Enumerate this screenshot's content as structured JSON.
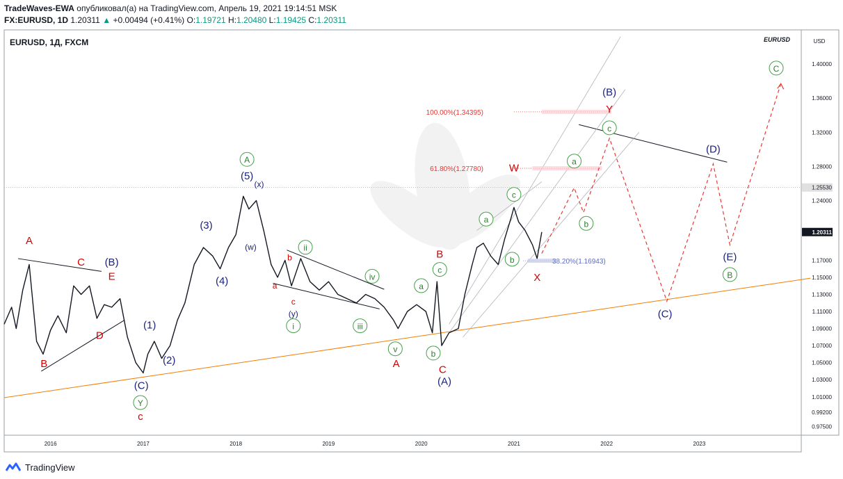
{
  "header": {
    "publisher": "TradeWaves-EWA",
    "published_text": "опубликовал(а) на TradingView.com, Апрель 19, 2021 19:14:51 MSK",
    "symbol": "FX:EURUSD, 1D",
    "last": "1.20311",
    "change": "+0.00494 (+0.41%)",
    "o_label": "O:",
    "o_val": "1.19721",
    "h_label": "H:",
    "h_val": "1.20480",
    "l_label": "L:",
    "l_val": "1.19425",
    "c_label": "C:",
    "c_val": "1.20311"
  },
  "footer": {
    "brand": "TradingView"
  },
  "chart_data": {
    "type": "line",
    "title": "EURUSD, 1Д, FXCM",
    "watermark": "EURUSD",
    "y_axis_unit": "USD",
    "ylim": [
      0.965,
      1.44
    ],
    "xlim": [
      2015.5,
      2024.1
    ],
    "y_ticks": [
      "1.40000",
      "1.36000",
      "1.32000",
      "1.28000",
      "1.24000",
      "1.20311",
      "1.17000",
      "1.15000",
      "1.13000",
      "1.11000",
      "1.09000",
      "1.07000",
      "1.05000",
      "1.03000",
      "1.01000",
      "0.99200",
      "0.97500"
    ],
    "y_tick_values": [
      1.4,
      1.36,
      1.32,
      1.28,
      1.24,
      1.20311,
      1.17,
      1.15,
      1.13,
      1.11,
      1.09,
      1.07,
      1.05,
      1.03,
      1.01,
      0.992,
      0.975
    ],
    "y_marker": {
      "label": "1.25530",
      "value": 1.2553
    },
    "last_price_badge": {
      "label": "1.20311",
      "value": 1.20311
    },
    "x_ticks": [
      "2016",
      "2017",
      "2018",
      "2019",
      "2020",
      "2021",
      "2022",
      "2023"
    ],
    "x_tick_values": [
      2016,
      2017,
      2018,
      2019,
      2020,
      2021,
      2022,
      2023
    ],
    "series": [
      {
        "type": "price",
        "points": [
          [
            2015.5,
            1.095
          ],
          [
            2015.58,
            1.115
          ],
          [
            2015.63,
            1.09
          ],
          [
            2015.7,
            1.135
          ],
          [
            2015.77,
            1.165
          ],
          [
            2015.85,
            1.075
          ],
          [
            2015.92,
            1.06
          ],
          [
            2016.0,
            1.088
          ],
          [
            2016.08,
            1.105
          ],
          [
            2016.17,
            1.085
          ],
          [
            2016.25,
            1.14
          ],
          [
            2016.33,
            1.13
          ],
          [
            2016.42,
            1.14
          ],
          [
            2016.5,
            1.102
          ],
          [
            2016.58,
            1.118
          ],
          [
            2016.66,
            1.115
          ],
          [
            2016.75,
            1.125
          ],
          [
            2016.83,
            1.08
          ],
          [
            2016.92,
            1.05
          ],
          [
            2017.0,
            1.038
          ],
          [
            2017.05,
            1.06
          ],
          [
            2017.12,
            1.075
          ],
          [
            2017.2,
            1.055
          ],
          [
            2017.29,
            1.07
          ],
          [
            2017.37,
            1.1
          ],
          [
            2017.45,
            1.12
          ],
          [
            2017.55,
            1.165
          ],
          [
            2017.65,
            1.185
          ],
          [
            2017.75,
            1.175
          ],
          [
            2017.83,
            1.16
          ],
          [
            2017.92,
            1.185
          ],
          [
            2018.0,
            1.2
          ],
          [
            2018.08,
            1.245
          ],
          [
            2018.14,
            1.23
          ],
          [
            2018.22,
            1.24
          ],
          [
            2018.3,
            1.205
          ],
          [
            2018.38,
            1.165
          ],
          [
            2018.45,
            1.15
          ],
          [
            2018.53,
            1.17
          ],
          [
            2018.6,
            1.14
          ],
          [
            2018.7,
            1.172
          ],
          [
            2018.8,
            1.145
          ],
          [
            2018.9,
            1.135
          ],
          [
            2019.0,
            1.145
          ],
          [
            2019.1,
            1.13
          ],
          [
            2019.2,
            1.125
          ],
          [
            2019.3,
            1.12
          ],
          [
            2019.4,
            1.13
          ],
          [
            2019.5,
            1.125
          ],
          [
            2019.6,
            1.115
          ],
          [
            2019.7,
            1.1
          ],
          [
            2019.75,
            1.09
          ],
          [
            2019.85,
            1.11
          ],
          [
            2019.95,
            1.118
          ],
          [
            2020.05,
            1.11
          ],
          [
            2020.12,
            1.085
          ],
          [
            2020.17,
            1.145
          ],
          [
            2020.22,
            1.07
          ],
          [
            2020.3,
            1.085
          ],
          [
            2020.4,
            1.09
          ],
          [
            2020.47,
            1.13
          ],
          [
            2020.55,
            1.165
          ],
          [
            2020.6,
            1.185
          ],
          [
            2020.67,
            1.19
          ],
          [
            2020.75,
            1.175
          ],
          [
            2020.83,
            1.165
          ],
          [
            2020.9,
            1.195
          ],
          [
            2020.97,
            1.22
          ],
          [
            2021.0,
            1.232
          ],
          [
            2021.05,
            1.215
          ],
          [
            2021.12,
            1.205
          ],
          [
            2021.2,
            1.188
          ],
          [
            2021.25,
            1.172
          ],
          [
            2021.3,
            1.2031
          ]
        ]
      }
    ],
    "waves": [
      {
        "text": "A",
        "x": 2015.77,
        "y": 1.189,
        "kind": "red"
      },
      {
        "text": "B",
        "x": 2015.93,
        "y": 1.045,
        "kind": "red"
      },
      {
        "text": "C",
        "x": 2016.33,
        "y": 1.164,
        "kind": "red"
      },
      {
        "text": "(B)",
        "x": 2016.66,
        "y": 1.164,
        "kind": "blue"
      },
      {
        "text": "E",
        "x": 2016.66,
        "y": 1.147,
        "kind": "red"
      },
      {
        "text": "D",
        "x": 2016.53,
        "y": 1.078,
        "kind": "red"
      },
      {
        "text": "(C)",
        "x": 2016.98,
        "y": 1.019,
        "kind": "blue"
      },
      {
        "text": "Y",
        "x": 2016.97,
        "y": 1.0,
        "kind": "green-circle"
      },
      {
        "text": "c",
        "x": 2016.97,
        "y": 0.983,
        "kind": "red"
      },
      {
        "text": "(1)",
        "x": 2017.07,
        "y": 1.09,
        "kind": "blue"
      },
      {
        "text": "(2)",
        "x": 2017.28,
        "y": 1.049,
        "kind": "blue"
      },
      {
        "text": "(3)",
        "x": 2017.68,
        "y": 1.207,
        "kind": "blue"
      },
      {
        "text": "(4)",
        "x": 2017.85,
        "y": 1.142,
        "kind": "blue"
      },
      {
        "text": "A",
        "x": 2018.12,
        "y": 1.285,
        "kind": "green-circle"
      },
      {
        "text": "(5)",
        "x": 2018.12,
        "y": 1.265,
        "kind": "blue"
      },
      {
        "text": "(x)",
        "x": 2018.25,
        "y": 1.256,
        "kind": "blue-small"
      },
      {
        "text": "(w)",
        "x": 2018.16,
        "y": 1.182,
        "kind": "blue-small"
      },
      {
        "text": "b",
        "x": 2018.58,
        "y": 1.17,
        "kind": "red-small"
      },
      {
        "text": "ii",
        "x": 2018.75,
        "y": 1.182,
        "kind": "green-circle"
      },
      {
        "text": "a",
        "x": 2018.42,
        "y": 1.137,
        "kind": "red-small"
      },
      {
        "text": "c",
        "x": 2018.62,
        "y": 1.118,
        "kind": "red-small"
      },
      {
        "text": "(y)",
        "x": 2018.62,
        "y": 1.104,
        "kind": "blue-small"
      },
      {
        "text": "i",
        "x": 2018.62,
        "y": 1.09,
        "kind": "green-circle"
      },
      {
        "text": "iv",
        "x": 2019.47,
        "y": 1.148,
        "kind": "green-circle"
      },
      {
        "text": "iii",
        "x": 2019.34,
        "y": 1.09,
        "kind": "green-circle"
      },
      {
        "text": "v",
        "x": 2019.72,
        "y": 1.063,
        "kind": "green-circle"
      },
      {
        "text": "A",
        "x": 2019.73,
        "y": 1.045,
        "kind": "red"
      },
      {
        "text": "a",
        "x": 2020.0,
        "y": 1.137,
        "kind": "green-circle"
      },
      {
        "text": "B",
        "x": 2020.2,
        "y": 1.173,
        "kind": "red"
      },
      {
        "text": "c",
        "x": 2020.2,
        "y": 1.156,
        "kind": "green-circle"
      },
      {
        "text": "b",
        "x": 2020.13,
        "y": 1.058,
        "kind": "green-circle"
      },
      {
        "text": "C",
        "x": 2020.23,
        "y": 1.038,
        "kind": "red"
      },
      {
        "text": "(A)",
        "x": 2020.25,
        "y": 1.024,
        "kind": "blue"
      },
      {
        "text": "a",
        "x": 2020.7,
        "y": 1.215,
        "kind": "green-circle"
      },
      {
        "text": "b",
        "x": 2020.98,
        "y": 1.168,
        "kind": "green-circle"
      },
      {
        "text": "c",
        "x": 2021.0,
        "y": 1.244,
        "kind": "green-circle"
      },
      {
        "text": "W",
        "x": 2021.0,
        "y": 1.274,
        "kind": "red"
      },
      {
        "text": "X",
        "x": 2021.25,
        "y": 1.146,
        "kind": "red"
      },
      {
        "text": "a",
        "x": 2021.65,
        "y": 1.283,
        "kind": "green-circle"
      },
      {
        "text": "b",
        "x": 2021.78,
        "y": 1.21,
        "kind": "green-circle"
      },
      {
        "text": "c",
        "x": 2022.03,
        "y": 1.322,
        "kind": "green-circle"
      },
      {
        "text": "Y",
        "x": 2022.03,
        "y": 1.343,
        "kind": "red"
      },
      {
        "text": "(B)",
        "x": 2022.03,
        "y": 1.363,
        "kind": "blue"
      },
      {
        "text": "(D)",
        "x": 2023.15,
        "y": 1.296,
        "kind": "blue"
      },
      {
        "text": "(E)",
        "x": 2023.33,
        "y": 1.17,
        "kind": "blue"
      },
      {
        "text": "B",
        "x": 2023.33,
        "y": 1.15,
        "kind": "green-circle"
      },
      {
        "text": "(C)",
        "x": 2022.63,
        "y": 1.103,
        "kind": "blue"
      },
      {
        "text": "C",
        "x": 2023.83,
        "y": 1.392,
        "kind": "green-circle"
      }
    ],
    "fib_levels": [
      {
        "label": "100.00%(1.34395)",
        "value": 1.34395,
        "x_start": 2021.0,
        "x_end": 2022.05
      },
      {
        "label": "61.80%(1.27780)",
        "value": 1.2778,
        "x_start": 2021.0,
        "x_end": 2021.95
      },
      {
        "label": "38.20%(1.16943)",
        "value": 1.16943,
        "x_start": 2021.1,
        "x_end": 2021.45
      }
    ],
    "trend_lines": [
      {
        "kind": "black",
        "points": [
          [
            2015.65,
            1.172
          ],
          [
            2016.55,
            1.157
          ]
        ]
      },
      {
        "kind": "black",
        "points": [
          [
            2015.9,
            1.04
          ],
          [
            2016.8,
            1.1
          ]
        ]
      },
      {
        "kind": "black",
        "points": [
          [
            2018.55,
            1.182
          ],
          [
            2019.6,
            1.136
          ]
        ]
      },
      {
        "kind": "black",
        "points": [
          [
            2018.4,
            1.143
          ],
          [
            2019.55,
            1.113
          ]
        ]
      },
      {
        "kind": "black",
        "points": [
          [
            2021.7,
            1.329
          ],
          [
            2023.3,
            1.285
          ]
        ]
      },
      {
        "kind": "orange",
        "points": [
          [
            2015.5,
            1.009
          ],
          [
            2024.2,
            1.149
          ]
        ]
      }
    ],
    "channel_lines": [
      {
        "points": [
          [
            2020.6,
            1.205
          ],
          [
            2021.3,
            1.262
          ]
        ]
      },
      {
        "points": [
          [
            2020.3,
            1.095
          ],
          [
            2022.15,
            1.432
          ]
        ]
      },
      {
        "points": [
          [
            2020.3,
            1.085
          ],
          [
            2022.2,
            1.37
          ]
        ]
      },
      {
        "points": [
          [
            2020.45,
            1.08
          ],
          [
            2022.35,
            1.32
          ]
        ]
      }
    ],
    "projection": {
      "points": [
        [
          2021.3,
          1.178
        ],
        [
          2021.65,
          1.255
        ],
        [
          2021.75,
          1.226
        ],
        [
          2022.03,
          1.313
        ],
        [
          2022.65,
          1.122
        ],
        [
          2023.15,
          1.283
        ],
        [
          2023.33,
          1.188
        ],
        [
          2023.88,
          1.377
        ]
      ]
    },
    "grid": false,
    "legend": "none"
  }
}
